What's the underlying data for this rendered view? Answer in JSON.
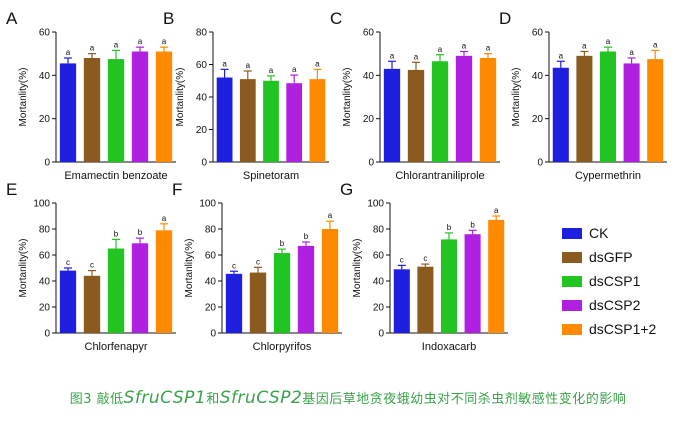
{
  "caption": {
    "prefix": "图3 敲低",
    "gene1": "SfruCSP1",
    "middle": "和",
    "gene2": "SfruCSP2",
    "suffix": "基因后草地贪夜蛾幼虫对不同杀虫剂敏感性变化的影响"
  },
  "legend": {
    "items": [
      {
        "name": "CK",
        "color": "#1f1fe0"
      },
      {
        "name": "dsGFP",
        "color": "#8b5a1e"
      },
      {
        "name": "dsCSP1",
        "color": "#22c422"
      },
      {
        "name": "dsCSP2",
        "color": "#b020e0"
      },
      {
        "name": "dsCSP1+2",
        "color": "#ff8a00"
      }
    ]
  },
  "chart_data": [
    {
      "type": "bar",
      "panel": "A",
      "xlabel": "Emamectin benzoate",
      "ylabel": "Mortanlity(%)",
      "ylim": [
        0,
        60
      ],
      "yticks": [
        0,
        20,
        40,
        60
      ],
      "categories": [
        "CK",
        "dsGFP",
        "dsCSP1",
        "dsCSP2",
        "dsCSP1+2"
      ],
      "values": [
        45.5,
        48,
        47.5,
        51,
        51
      ],
      "errors": [
        2.5,
        2,
        4,
        2,
        2
      ],
      "labels": [
        "a",
        "a",
        "a",
        "a",
        "a"
      ]
    },
    {
      "type": "bar",
      "panel": "B",
      "xlabel": "Spinetoram",
      "ylabel": "Mortanlity(%)",
      "ylim": [
        0,
        80
      ],
      "yticks": [
        0,
        20,
        40,
        60,
        80
      ],
      "categories": [
        "CK",
        "dsGFP",
        "dsCSP1",
        "dsCSP2",
        "dsCSP1+2"
      ],
      "values": [
        52,
        51,
        50,
        48.5,
        51
      ],
      "errors": [
        5,
        5,
        3,
        5,
        6
      ],
      "labels": [
        "a",
        "a",
        "a",
        "a",
        "a"
      ]
    },
    {
      "type": "bar",
      "panel": "C",
      "xlabel": "Chlorantraniliprole",
      "ylabel": "Mortanlity(%)",
      "ylim": [
        0,
        60
      ],
      "yticks": [
        0,
        20,
        40,
        60
      ],
      "categories": [
        "CK",
        "dsGFP",
        "dsCSP1",
        "dsCSP2",
        "dsCSP1+2"
      ],
      "values": [
        43,
        42.5,
        46.5,
        49,
        48
      ],
      "errors": [
        3.5,
        3.5,
        3,
        2,
        2
      ],
      "labels": [
        "a",
        "a",
        "a",
        "a",
        "a"
      ]
    },
    {
      "type": "bar",
      "panel": "D",
      "xlabel": "Cypermethrin",
      "ylabel": "Mortanlity(%)",
      "ylim": [
        0,
        60
      ],
      "yticks": [
        0,
        20,
        40,
        60
      ],
      "categories": [
        "CK",
        "dsGFP",
        "dsCSP1",
        "dsCSP2",
        "dsCSP1+2"
      ],
      "values": [
        43.5,
        49,
        51,
        45.5,
        47.5
      ],
      "errors": [
        3,
        2,
        2,
        2.5,
        4
      ],
      "labels": [
        "a",
        "a",
        "a",
        "a",
        "a"
      ]
    },
    {
      "type": "bar",
      "panel": "E",
      "xlabel": "Chlorfenapyr",
      "ylabel": "Mortanlity(%)",
      "ylim": [
        0,
        100
      ],
      "yticks": [
        0,
        20,
        40,
        60,
        80,
        100
      ],
      "categories": [
        "CK",
        "dsGFP",
        "dsCSP1",
        "dsCSP2",
        "dsCSP1+2"
      ],
      "values": [
        48,
        44,
        65,
        69,
        79
      ],
      "errors": [
        2,
        4,
        7,
        4,
        5
      ],
      "labels": [
        "c",
        "c",
        "b",
        "b",
        "a"
      ]
    },
    {
      "type": "bar",
      "panel": "F",
      "xlabel": "Chlorpyrifos",
      "ylabel": "Mortanlity(%)",
      "ylim": [
        0,
        100
      ],
      "yticks": [
        0,
        20,
        40,
        60,
        80,
        100
      ],
      "categories": [
        "CK",
        "dsGFP",
        "dsCSP1",
        "dsCSP2",
        "dsCSP1+2"
      ],
      "values": [
        45.5,
        46.5,
        61.5,
        67,
        80
      ],
      "errors": [
        2,
        4,
        3,
        3,
        6
      ],
      "labels": [
        "c",
        "c",
        "b",
        "b",
        "a"
      ]
    },
    {
      "type": "bar",
      "panel": "G",
      "xlabel": "Indoxacarb",
      "ylabel": "Mortanlity(%)",
      "ylim": [
        0,
        100
      ],
      "yticks": [
        0,
        20,
        40,
        60,
        80,
        100
      ],
      "categories": [
        "CK",
        "dsGFP",
        "dsCSP1",
        "dsCSP2",
        "dsCSP1+2"
      ],
      "values": [
        49,
        51,
        72,
        76,
        87
      ],
      "errors": [
        3,
        2,
        5,
        3,
        3
      ],
      "labels": [
        "c",
        "c",
        "b",
        "b",
        "a"
      ]
    }
  ]
}
